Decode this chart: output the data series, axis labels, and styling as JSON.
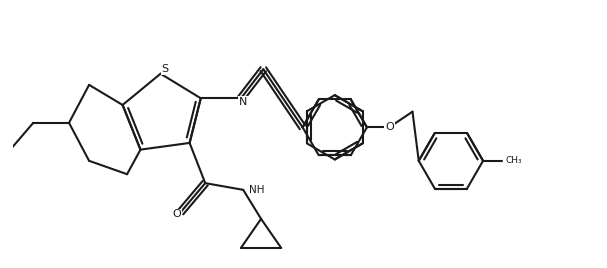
{
  "background_color": "#ffffff",
  "line_color": "#1a1a1a",
  "line_width": 1.5,
  "fig_width": 6.07,
  "fig_height": 2.68,
  "dpi": 100,
  "xlim": [
    0,
    13.0
  ],
  "ylim": [
    0,
    6.0
  ]
}
